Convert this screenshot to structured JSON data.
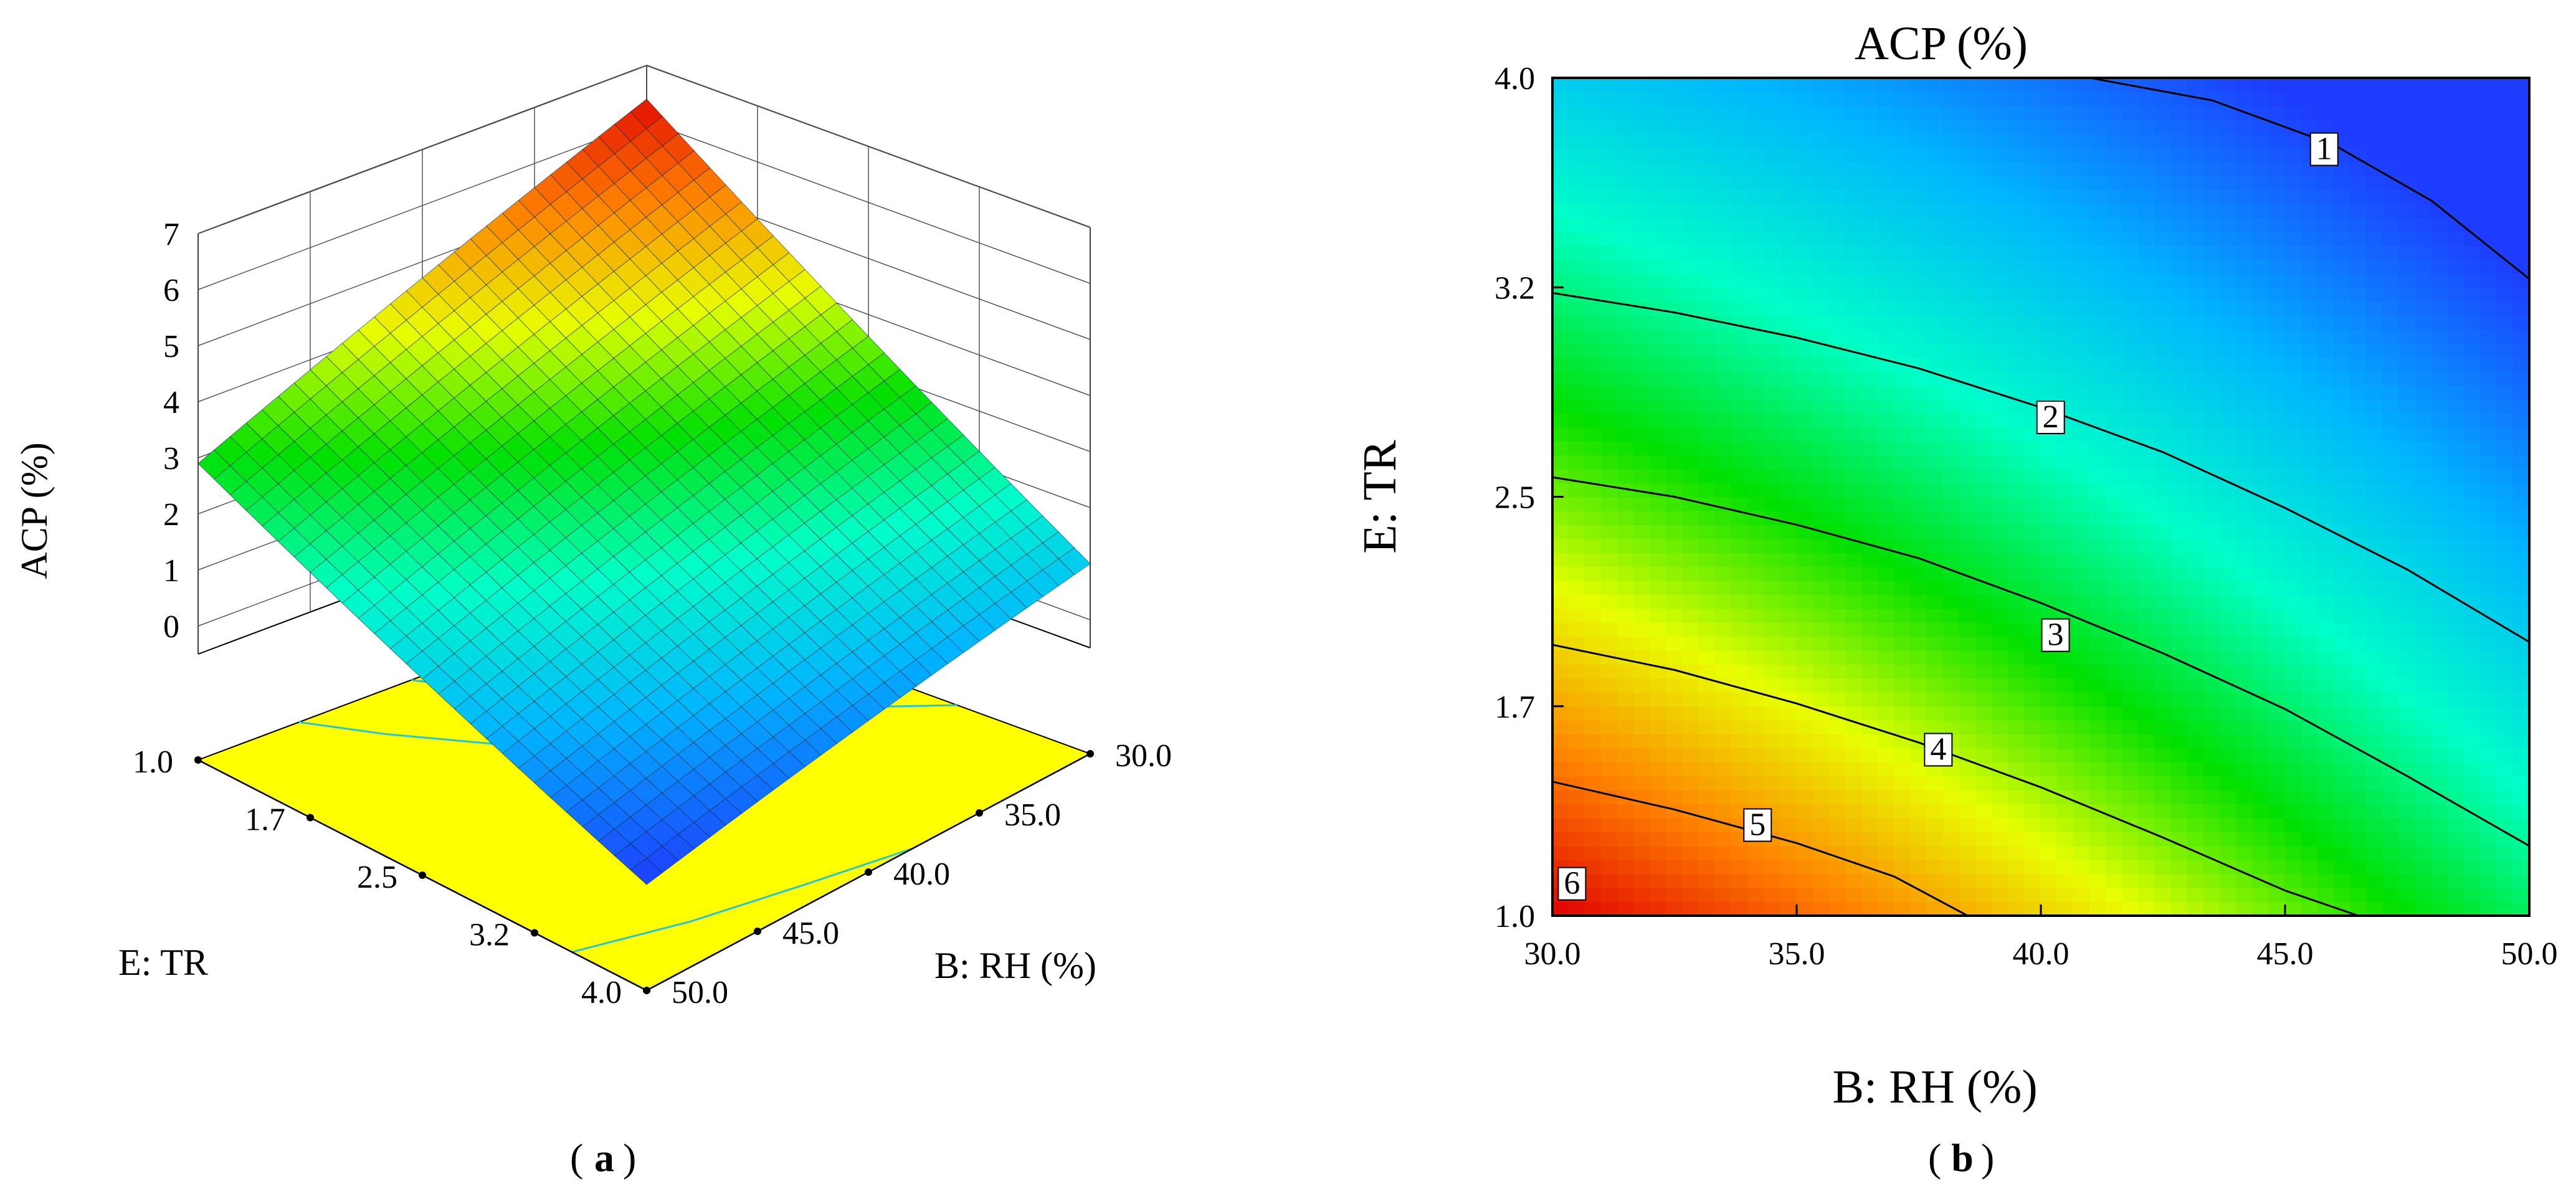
{
  "chart_data": [
    {
      "panel": "a",
      "type": "surface3d",
      "zlabel": "ACP (%)",
      "xlabel": "E: TR",
      "ylabel": "B: RH (%)",
      "z_ticks": [
        "7",
        "6",
        "5",
        "4",
        "3",
        "2",
        "1",
        "0"
      ],
      "x_ticks": [
        "1.0",
        "1.7",
        "2.5",
        "3.2",
        "4.0"
      ],
      "y_ticks": [
        "30.0",
        "35.0",
        "40.0",
        "45.0",
        "50.0"
      ],
      "xlim": [
        1.0,
        4.0
      ],
      "ylim": [
        30.0,
        50.0
      ],
      "zlim": [
        0,
        7
      ],
      "corner_values": [
        {
          "TR": 1.0,
          "RH": 30.0,
          "ACP": 6.4
        },
        {
          "TR": 1.0,
          "RH": 50.0,
          "ACP": 2.9
        },
        {
          "TR": 4.0,
          "RH": 30.0,
          "ACP": 1.0
        },
        {
          "TR": 4.0,
          "RH": 50.0,
          "ACP": -0.5
        }
      ],
      "colormap": [
        "#1e3cff",
        "#00b4ff",
        "#00ffc8",
        "#00e000",
        "#e8ff00",
        "#ff8000",
        "#e00000"
      ],
      "floor_color": "#ffff00",
      "caption": "a"
    },
    {
      "panel": "b",
      "type": "contour",
      "title": "ACP (%)",
      "xlabel": "B: RH (%)",
      "ylabel": "E: TR",
      "x_ticks": [
        "30.0",
        "35.0",
        "40.0",
        "45.0",
        "50.0"
      ],
      "y_ticks": [
        "1.0",
        "1.7",
        "2.5",
        "3.2",
        "4.0"
      ],
      "xlim": [
        30.0,
        50.0
      ],
      "ylim": [
        1.0,
        4.0
      ],
      "contours": [
        {
          "label": "1",
          "points": [
            [
              41.0,
              4.0
            ],
            [
              43.5,
              3.92
            ],
            [
              46.0,
              3.76
            ],
            [
              48.0,
              3.56
            ],
            [
              50.0,
              3.28
            ]
          ],
          "label_at": [
            45.8,
            3.74
          ]
        },
        {
          "label": "2",
          "points": [
            [
              30.0,
              3.23
            ],
            [
              32.5,
              3.16
            ],
            [
              35.0,
              3.07
            ],
            [
              37.5,
              2.96
            ],
            [
              40.0,
              2.82
            ],
            [
              42.5,
              2.66
            ],
            [
              45.0,
              2.46
            ],
            [
              47.5,
              2.24
            ],
            [
              50.0,
              1.98
            ]
          ],
          "label_at": [
            40.2,
            2.78
          ]
        },
        {
          "label": "3",
          "points": [
            [
              30.0,
              2.57
            ],
            [
              32.5,
              2.5
            ],
            [
              35.0,
              2.4
            ],
            [
              37.5,
              2.28
            ],
            [
              40.0,
              2.12
            ],
            [
              42.5,
              1.94
            ],
            [
              45.0,
              1.74
            ],
            [
              47.5,
              1.5
            ],
            [
              50.0,
              1.25
            ]
          ],
          "label_at": [
            40.3,
            2.0
          ]
        },
        {
          "label": "4",
          "points": [
            [
              30.0,
              1.97
            ],
            [
              32.5,
              1.88
            ],
            [
              35.0,
              1.76
            ],
            [
              37.5,
              1.62
            ],
            [
              40.0,
              1.46
            ],
            [
              42.5,
              1.28
            ],
            [
              45.0,
              1.09
            ],
            [
              46.5,
              1.0
            ]
          ],
          "label_at": [
            37.9,
            1.59
          ]
        },
        {
          "label": "5",
          "points": [
            [
              30.0,
              1.48
            ],
            [
              32.5,
              1.38
            ],
            [
              35.0,
              1.26
            ],
            [
              37.0,
              1.14
            ],
            [
              38.5,
              1.0
            ]
          ],
          "label_at": [
            34.2,
            1.32
          ]
        },
        {
          "label": "6",
          "points": [],
          "label_at": [
            30.4,
            1.11
          ]
        }
      ],
      "colormap": [
        "#1e3cff",
        "#00b4ff",
        "#00ffc8",
        "#00e000",
        "#e8ff00",
        "#ff8000",
        "#e00000"
      ],
      "caption": "b"
    }
  ]
}
